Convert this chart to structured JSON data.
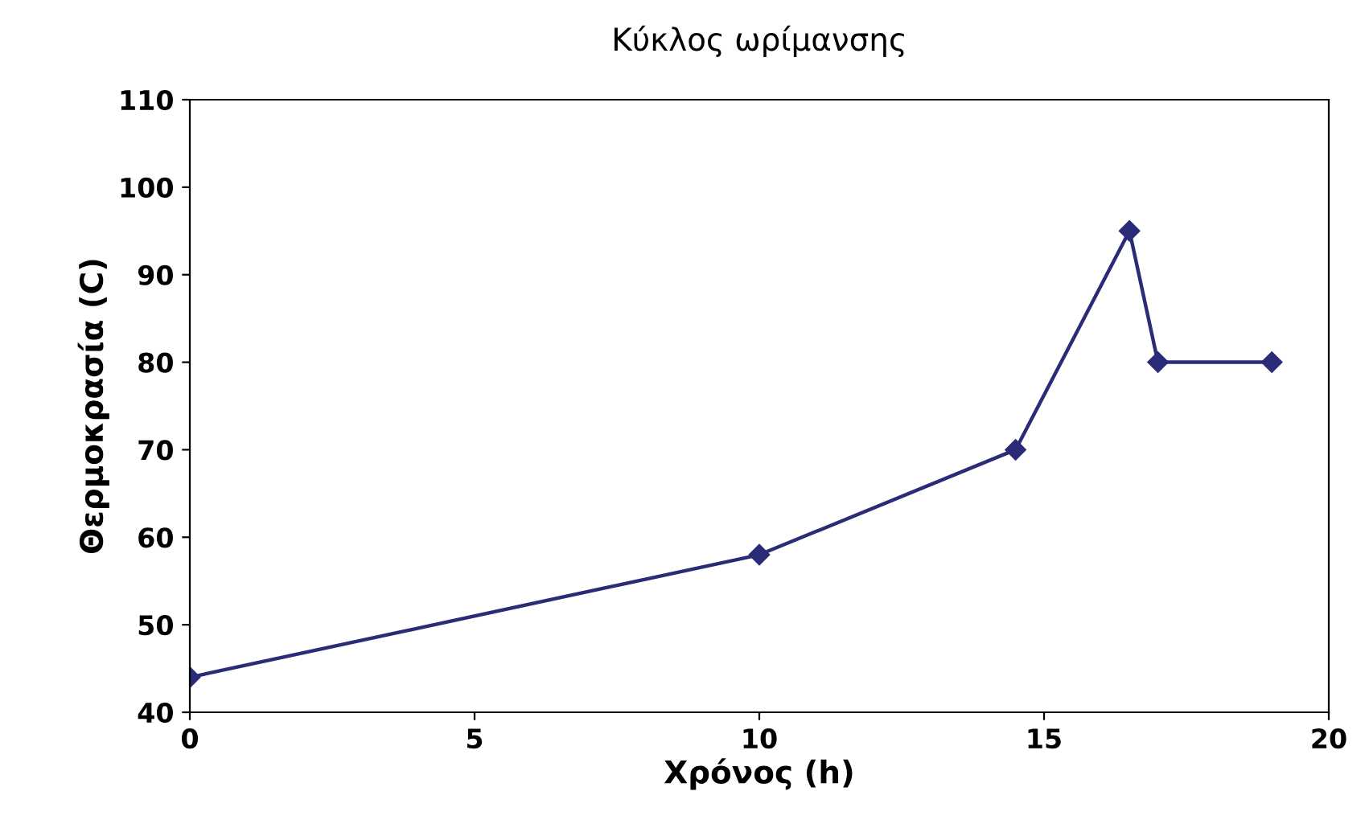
{
  "chart_data": {
    "type": "line",
    "title": "Κύκλος ωρίμανσης",
    "xlabel": "Χρόνος (h)",
    "ylabel": "Θερμοκρασία (C)",
    "x": [
      0,
      10,
      14.5,
      16.5,
      17,
      19
    ],
    "series": [
      {
        "color": "#2b2b78",
        "values": [
          44,
          58,
          70,
          95,
          80,
          80
        ]
      }
    ],
    "xlim": [
      0,
      20
    ],
    "xticks": [
      0,
      5,
      10,
      15,
      20
    ],
    "ylim": [
      40,
      110
    ],
    "yticks": [
      40,
      50,
      60,
      70,
      80,
      90,
      100,
      110
    ],
    "grid": false,
    "legend": false,
    "marker": "diamond",
    "line_style": "solid"
  }
}
